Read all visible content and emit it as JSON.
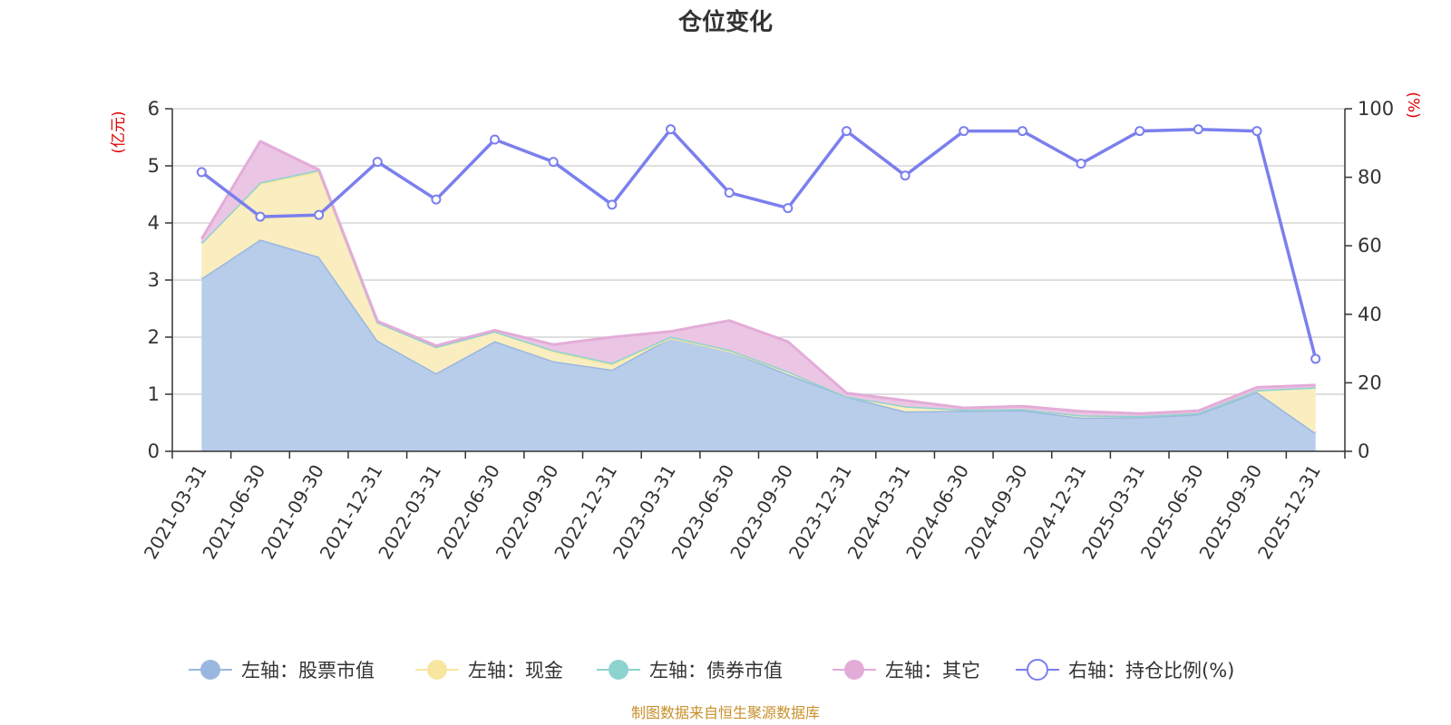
{
  "chart_data": {
    "type": "area",
    "title": "仓位变化",
    "left_axis_unit": "(亿元)",
    "right_axis_unit": "(%)",
    "x": [
      "2021-03-31",
      "2021-06-30",
      "2021-09-30",
      "2021-12-31",
      "2022-03-31",
      "2022-06-30",
      "2022-09-30",
      "2022-12-31",
      "2023-03-31",
      "2023-06-30",
      "2023-09-30",
      "2023-12-31",
      "2024-03-31",
      "2024-06-30",
      "2024-09-30",
      "2024-12-31",
      "2025-03-31",
      "2025-06-30",
      "2025-09-30",
      "2025-12-31"
    ],
    "left_ylim": [
      0,
      6
    ],
    "left_yticks": [
      0,
      1,
      2,
      3,
      4,
      5,
      6
    ],
    "right_ylim": [
      0,
      100
    ],
    "right_yticks": [
      0,
      20,
      40,
      60,
      80,
      100
    ],
    "grid": true,
    "legend_position": "bottom",
    "series": [
      {
        "name": "左轴：股票市值",
        "axis": "left",
        "kind": "stacked-area",
        "color": "#9ab7e0",
        "fill": "#b7cdea",
        "values": [
          3.03,
          3.71,
          3.41,
          1.94,
          1.37,
          1.93,
          1.58,
          1.43,
          1.99,
          1.76,
          1.35,
          0.96,
          0.7,
          0.71,
          0.72,
          0.59,
          0.6,
          0.65,
          1.04,
          0.32
        ]
      },
      {
        "name": "左轴：现金",
        "axis": "left",
        "kind": "stacked-area",
        "color": "#f8e6a0",
        "fill": "#faeec0",
        "values": [
          0.62,
          0.98,
          1.49,
          0.32,
          0.46,
          0.17,
          0.17,
          0.09,
          0.0,
          0.0,
          0.05,
          0.0,
          0.09,
          0.02,
          0.02,
          0.04,
          0.02,
          0.02,
          0.03,
          0.8
        ]
      },
      {
        "name": "左轴：债券市值",
        "axis": "left",
        "kind": "stacked-area",
        "color": "#8dd3d0",
        "fill": "#a8dcd8",
        "values": [
          0.0,
          0.02,
          0.03,
          0.0,
          0.0,
          0.0,
          0.02,
          0.03,
          0.02,
          0.02,
          0.0,
          0.0,
          0.0,
          0.0,
          0.0,
          0.0,
          0.0,
          0.0,
          0.0,
          0.0
        ]
      },
      {
        "name": "左轴：其它",
        "axis": "left",
        "kind": "stacked-area",
        "color": "#e3acd8",
        "fill": "#ebc6e4",
        "values": [
          0.07,
          0.72,
          0.0,
          0.02,
          0.02,
          0.02,
          0.1,
          0.45,
          0.09,
          0.51,
          0.52,
          0.06,
          0.1,
          0.03,
          0.05,
          0.07,
          0.04,
          0.04,
          0.05,
          0.04
        ]
      },
      {
        "name": "右轴：持仓比例(%)",
        "axis": "right",
        "kind": "line",
        "color": "#7b7fed",
        "values": [
          81.5,
          68.5,
          69.0,
          84.5,
          73.5,
          91.0,
          84.5,
          72.0,
          94.0,
          75.5,
          71.0,
          93.5,
          80.5,
          93.5,
          93.5,
          84.0,
          93.5,
          94.0,
          93.5,
          27.0
        ]
      }
    ],
    "source_note": "制图数据来自恒生聚源数据库"
  }
}
